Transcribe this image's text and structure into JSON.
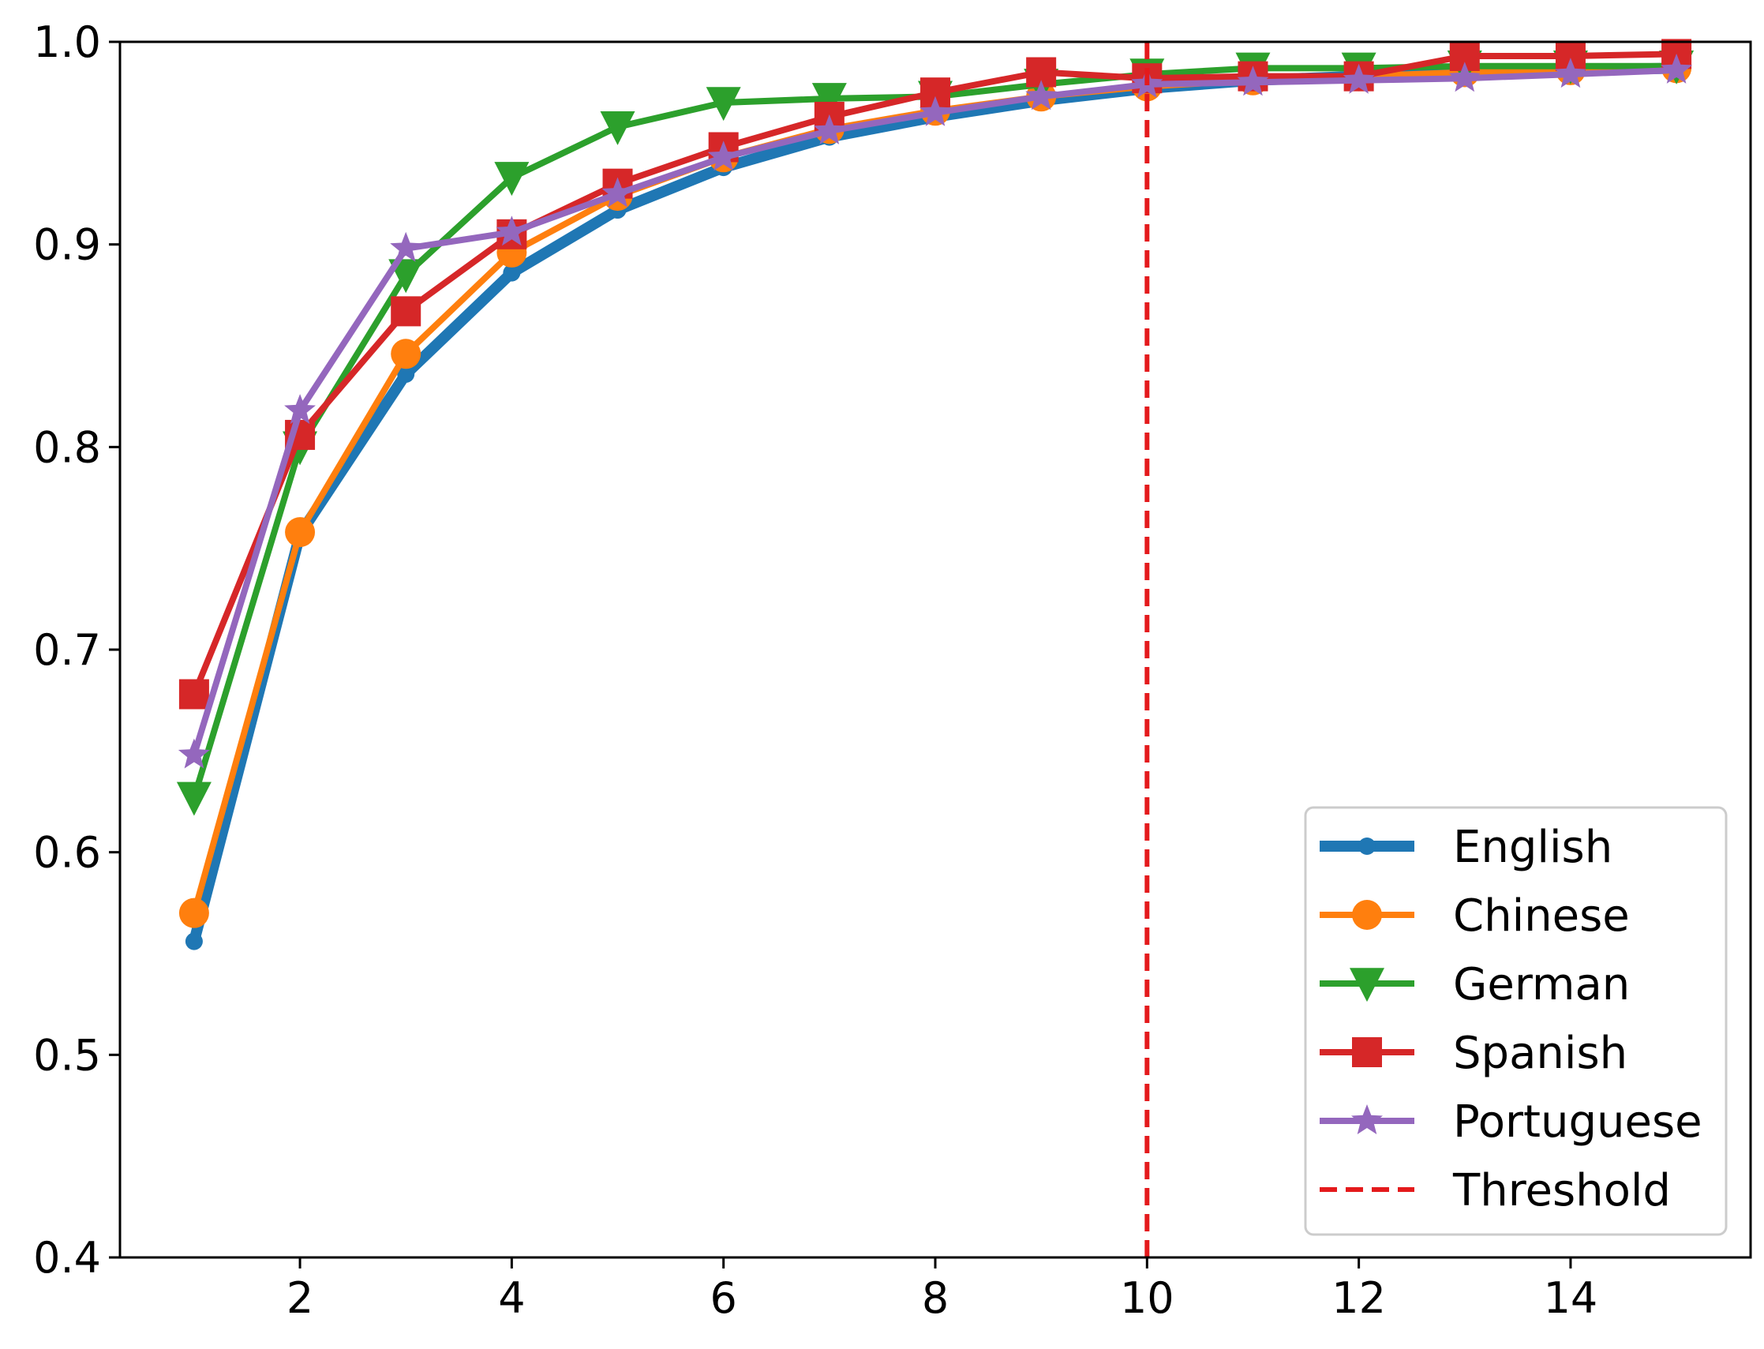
{
  "chart_data": {
    "type": "line",
    "title": "",
    "xlabel": "",
    "ylabel": "",
    "xlim": [
      0.3,
      15.7
    ],
    "ylim": [
      0.4,
      1.0
    ],
    "x_ticks": [
      2,
      4,
      6,
      8,
      10,
      12,
      14
    ],
    "y_ticks": [
      0.4,
      0.5,
      0.6,
      0.7,
      0.8,
      0.9,
      1.0
    ],
    "x_tick_labels": [
      "2",
      "4",
      "6",
      "8",
      "10",
      "12",
      "14"
    ],
    "y_tick_labels": [
      "0.4",
      "0.5",
      "0.6",
      "0.7",
      "0.8",
      "0.9",
      "1.0"
    ],
    "grid": false,
    "legend_position": "bottom-right",
    "x": [
      1,
      2,
      3,
      4,
      5,
      6,
      7,
      8,
      9,
      10,
      11,
      12,
      13,
      14,
      15
    ],
    "series": [
      {
        "name": "English",
        "color": "#1f77b4",
        "marker": "dot",
        "line_style": "thick",
        "values": [
          0.556,
          0.757,
          0.836,
          0.886,
          0.917,
          0.938,
          0.953,
          0.963,
          0.971,
          0.977,
          0.981,
          0.983,
          0.985,
          0.986,
          0.987
        ]
      },
      {
        "name": "Chinese",
        "color": "#ff7f0e",
        "marker": "circle",
        "line_style": "solid",
        "values": [
          0.57,
          0.758,
          0.846,
          0.896,
          0.924,
          0.943,
          0.957,
          0.966,
          0.973,
          0.978,
          0.981,
          0.983,
          0.985,
          0.986,
          0.987
        ]
      },
      {
        "name": "German",
        "color": "#2ca02c",
        "marker": "triangle-down",
        "line_style": "solid",
        "values": [
          0.627,
          0.8,
          0.885,
          0.933,
          0.958,
          0.97,
          0.972,
          0.973,
          0.979,
          0.984,
          0.987,
          0.987,
          0.988,
          0.988,
          0.988
        ]
      },
      {
        "name": "Spanish",
        "color": "#d62728",
        "marker": "square",
        "line_style": "solid",
        "values": [
          0.678,
          0.806,
          0.867,
          0.905,
          0.93,
          0.948,
          0.963,
          0.975,
          0.985,
          0.982,
          0.983,
          0.983,
          0.993,
          0.993,
          0.994
        ]
      },
      {
        "name": "Portuguese",
        "color": "#9467bd",
        "marker": "star",
        "line_style": "solid",
        "values": [
          0.648,
          0.818,
          0.898,
          0.906,
          0.925,
          0.943,
          0.956,
          0.965,
          0.973,
          0.979,
          0.98,
          0.981,
          0.982,
          0.984,
          0.986
        ]
      }
    ],
    "threshold": {
      "name": "Threshold",
      "x": 10,
      "color": "#e41a1c",
      "line_style": "dashed"
    }
  }
}
